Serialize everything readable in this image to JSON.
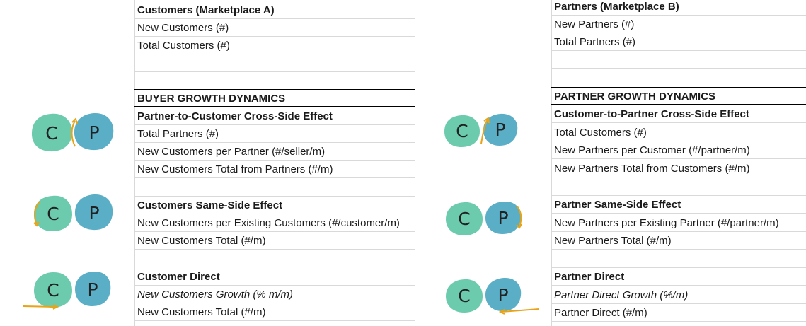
{
  "left": {
    "rows": [
      "Customers (Marketplace A)",
      "New Customers (#)",
      "Total Customers (#)",
      "",
      "",
      "BUYER GROWTH DYNAMICS",
      "Partner-to-Customer Cross-Side Effect",
      "Total Partners (#)",
      "New Customers per Partner (#/seller/m)",
      "New Customers Total from Partners (#/m)",
      "",
      "Customers Same-Side Effect",
      "New Customers per Existing Customers (#/customer/m)",
      "New Customers Total (#/m)",
      "",
      "Customer Direct",
      "New Customers Growth (% m/m)",
      "New Customers Total (#/m)"
    ]
  },
  "right": {
    "rows": [
      "Partners (Marketplace B)",
      "New Partners (#)",
      "Total Partners (#)",
      "",
      "",
      "PARTNER GROWTH DYNAMICS",
      "Customer-to-Partner Cross-Side Effect",
      "Total Customers (#)",
      "New Partners per Customer (#/partner/m)",
      "New Partners Total from Customers (#/m)",
      "",
      "Partner Same-Side Effect",
      "New Partners per Existing Partner (#/partner/m)",
      "New Partners Total (#/m)",
      "",
      "Partner Direct",
      "Partner Direct Growth (%/m)",
      "Partner Direct (#/m)"
    ]
  },
  "diagrams": {
    "c_label": "C",
    "p_label": "P",
    "colors": {
      "c_blob": "#6ccbad",
      "p_blob": "#5aaec6",
      "arrow": "#e8a317"
    },
    "items": [
      {
        "side": "left",
        "effect": "cross-side"
      },
      {
        "side": "left",
        "effect": "same-side"
      },
      {
        "side": "left",
        "effect": "direct"
      },
      {
        "side": "right",
        "effect": "cross-side"
      },
      {
        "side": "right",
        "effect": "same-side"
      },
      {
        "side": "right",
        "effect": "direct"
      }
    ]
  }
}
